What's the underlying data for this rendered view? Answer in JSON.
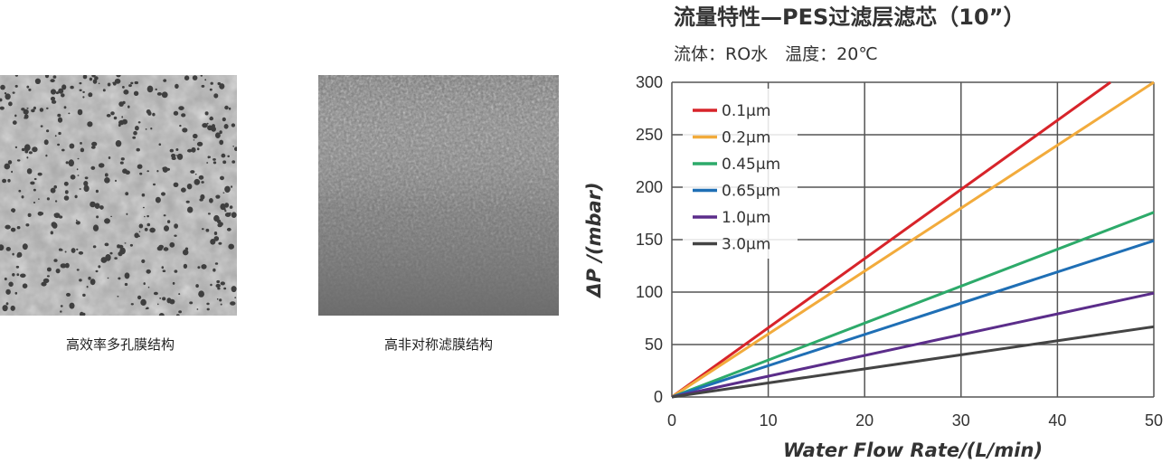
{
  "captions": {
    "left": "高效率多孔膜结构",
    "right": "高非对称滤膜结构"
  },
  "chart_data": {
    "type": "line",
    "title": "流量特性—PES过滤层滤芯（10”）",
    "subtitle": "流体：RO水　温度：20℃",
    "xlabel": "Water Flow Rate/(L/min)",
    "ylabel": "ΔP /(mbar)",
    "xlim": [
      0,
      50
    ],
    "ylim": [
      0,
      300
    ],
    "xticks": [
      "0",
      "10",
      "20",
      "30",
      "40",
      "50"
    ],
    "yticks": [
      "0",
      "50",
      "100",
      "150",
      "200",
      "250",
      "300"
    ],
    "grid": true,
    "legend_position": "top-left",
    "series": [
      {
        "name": "0.1µm",
        "color": "#d7242a",
        "points": [
          [
            0,
            0
          ],
          [
            45.5,
            300
          ]
        ]
      },
      {
        "name": "0.2µm",
        "color": "#f2ab3c",
        "points": [
          [
            0,
            0
          ],
          [
            50,
            300
          ]
        ]
      },
      {
        "name": "0.45µm",
        "color": "#2daa6a",
        "points": [
          [
            0,
            0
          ],
          [
            50,
            176
          ]
        ]
      },
      {
        "name": "0.65µm",
        "color": "#1f6fb5",
        "points": [
          [
            0,
            0
          ],
          [
            50,
            149
          ]
        ]
      },
      {
        "name": "1.0µm",
        "color": "#5b2d8a",
        "points": [
          [
            0,
            0
          ],
          [
            50,
            99
          ]
        ]
      },
      {
        "name": "3.0µm",
        "color": "#444444",
        "points": [
          [
            0,
            0
          ],
          [
            50,
            67
          ]
        ]
      }
    ]
  }
}
